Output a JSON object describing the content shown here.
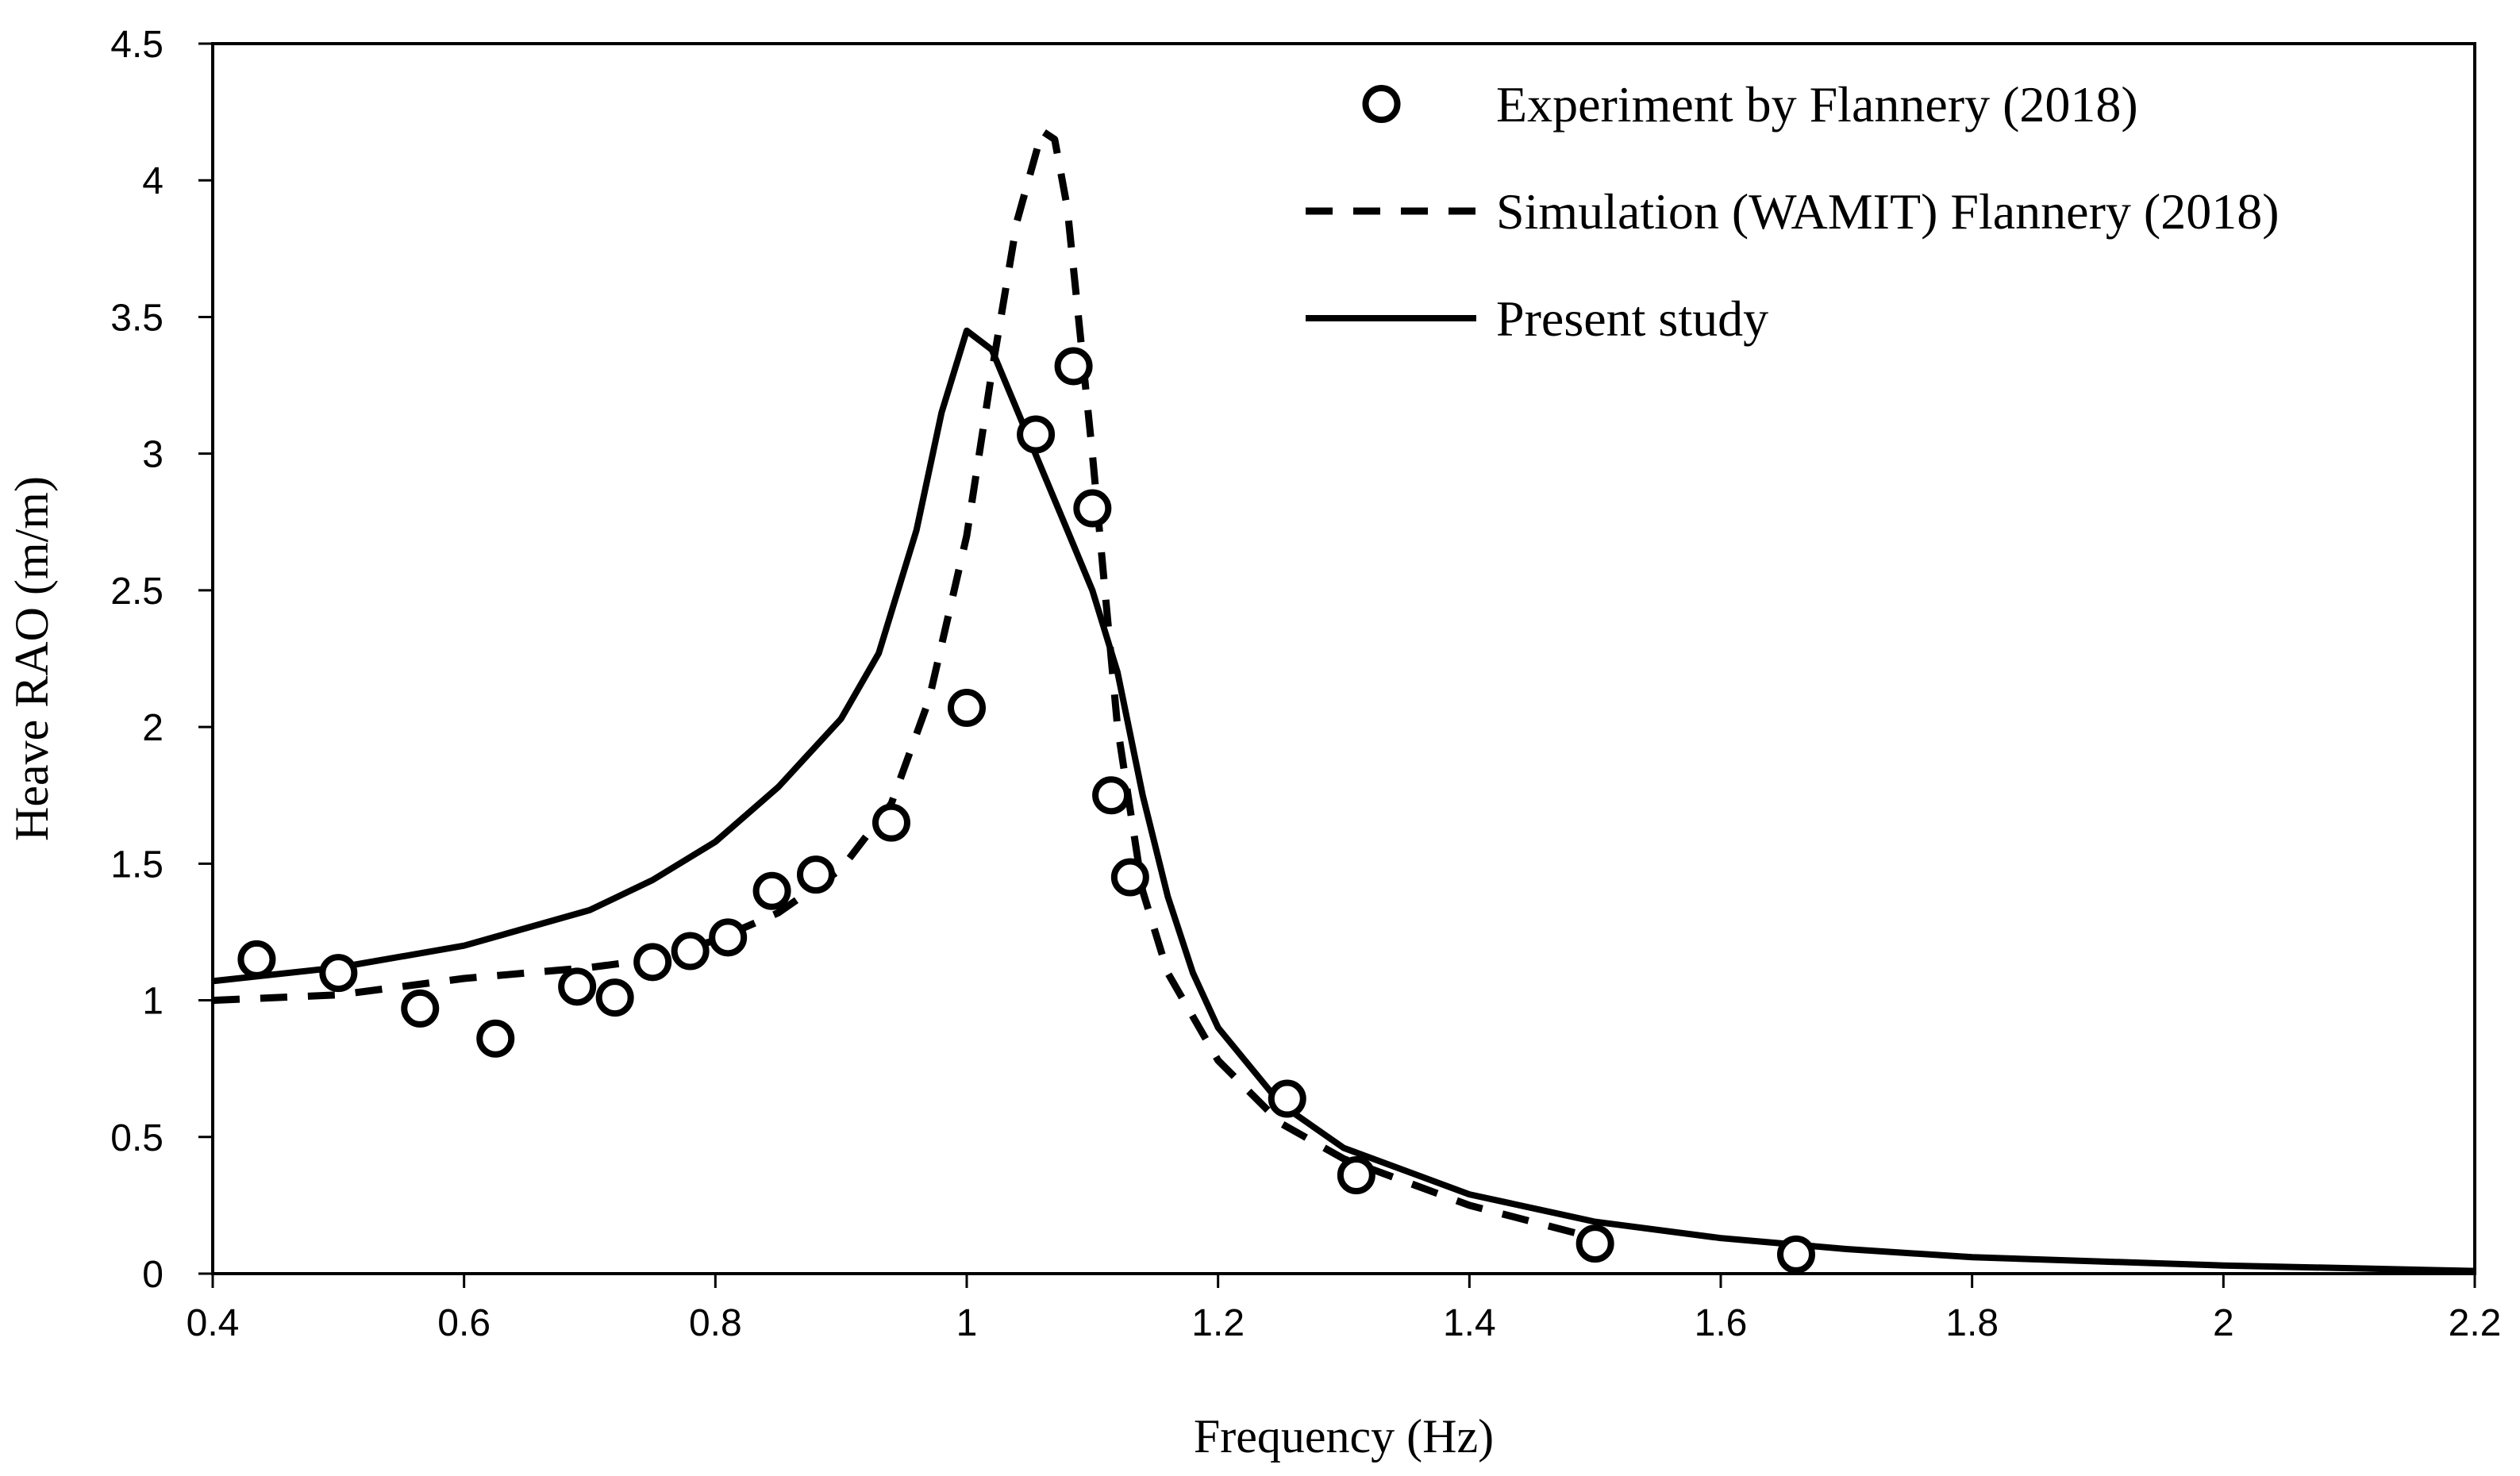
{
  "chart_data": {
    "type": "line",
    "title": "",
    "xlabel": "Frequency (Hz)",
    "ylabel": "Heave RAO (m/m)",
    "xlim": [
      0.4,
      2.2
    ],
    "ylim": [
      0,
      4.5
    ],
    "xticks": [
      0.4,
      0.6,
      0.8,
      1,
      1.2,
      1.4,
      1.6,
      1.8,
      2,
      2.2
    ],
    "yticks": [
      0,
      0.5,
      1,
      1.5,
      2,
      2.5,
      3,
      3.5,
      4,
      4.5
    ],
    "xtick_labels": [
      "0.4",
      "0.6",
      "0.8",
      "1",
      "1.2",
      "1.4",
      "1.6",
      "1.8",
      "2",
      "2.2"
    ],
    "ytick_labels": [
      "0",
      "0.5",
      "1",
      "1.5",
      "2",
      "2.5",
      "3",
      "3.5",
      "4",
      "4.5"
    ],
    "grid": false,
    "legend_position": "top-right",
    "series": [
      {
        "name": "Experiment by Flannery (2018)",
        "style": "open-circle-markers",
        "color": "#000000",
        "x": [
          0.435,
          0.5,
          0.565,
          0.625,
          0.69,
          0.72,
          0.75,
          0.78,
          0.81,
          0.845,
          0.88,
          0.94,
          1.0,
          1.055,
          1.085,
          1.1,
          1.115,
          1.13,
          1.255,
          1.31,
          1.5,
          1.66
        ],
        "y": [
          1.15,
          1.1,
          0.97,
          0.86,
          1.05,
          1.01,
          1.14,
          1.18,
          1.23,
          1.4,
          1.46,
          1.65,
          2.07,
          3.07,
          3.32,
          2.8,
          1.75,
          1.45,
          0.64,
          0.36,
          0.11,
          0.07
        ]
      },
      {
        "name": "Simulation (WAMIT) Flannery (2018)",
        "style": "dashed-line",
        "color": "#000000",
        "x": [
          0.4,
          0.5,
          0.6,
          0.7,
          0.75,
          0.8,
          0.85,
          0.9,
          0.94,
          0.97,
          1.0,
          1.02,
          1.04,
          1.06,
          1.07,
          1.08,
          1.1,
          1.12,
          1.14,
          1.16,
          1.2,
          1.25,
          1.3,
          1.4,
          1.5
        ],
        "y": [
          1.0,
          1.02,
          1.08,
          1.12,
          1.15,
          1.22,
          1.32,
          1.48,
          1.72,
          2.1,
          2.7,
          3.3,
          3.85,
          4.18,
          4.15,
          3.9,
          3.0,
          2.0,
          1.4,
          1.1,
          0.78,
          0.55,
          0.42,
          0.25,
          0.13
        ]
      },
      {
        "name": "Present study",
        "style": "solid-line",
        "color": "#000000",
        "x": [
          0.4,
          0.5,
          0.6,
          0.7,
          0.75,
          0.8,
          0.85,
          0.9,
          0.93,
          0.96,
          0.98,
          1.0,
          1.02,
          1.05,
          1.08,
          1.1,
          1.12,
          1.14,
          1.16,
          1.18,
          1.2,
          1.25,
          1.3,
          1.4,
          1.5,
          1.6,
          1.7,
          1.8,
          2.0,
          2.2
        ],
        "y": [
          1.07,
          1.12,
          1.2,
          1.33,
          1.44,
          1.58,
          1.78,
          2.03,
          2.27,
          2.72,
          3.15,
          3.45,
          3.38,
          3.05,
          2.72,
          2.5,
          2.2,
          1.75,
          1.38,
          1.1,
          0.9,
          0.62,
          0.46,
          0.29,
          0.19,
          0.13,
          0.09,
          0.06,
          0.03,
          0.01
        ]
      }
    ]
  }
}
